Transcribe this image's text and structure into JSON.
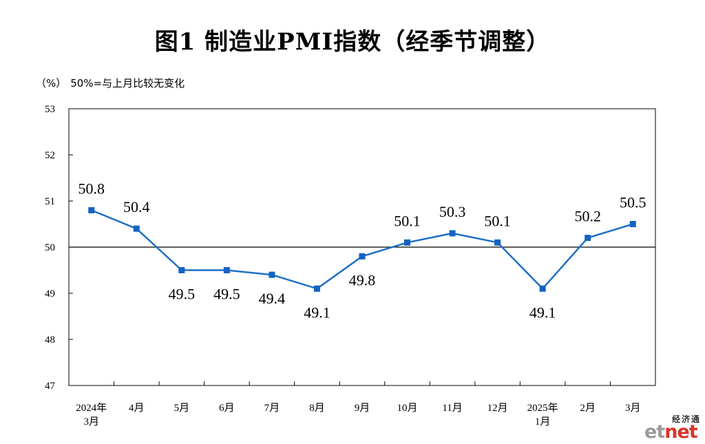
{
  "title": "图1  制造业PMI指数（经季节调整）",
  "unit": "（%）",
  "note": "50%=与上月比较无变化",
  "watermark": {
    "cn": "经济通",
    "en": "etnet",
    "colors": {
      "e": "#9a9a9a",
      "t": "#9a9a9a",
      "net": "#d9342b"
    }
  },
  "colors": {
    "line": "#1f6fc5",
    "marker": "#1463c2",
    "axis": "#000000",
    "reference": "#000000"
  },
  "chart_data": {
    "type": "line",
    "title": "图1  制造业PMI指数（经季节调整）",
    "ylabel": "（%）",
    "ylim": [
      47,
      53
    ],
    "yticks": [
      47,
      48,
      49,
      50,
      51,
      52,
      53
    ],
    "reference_line": 50,
    "categories": [
      [
        "2024年",
        "3月"
      ],
      [
        "4月"
      ],
      [
        "5月"
      ],
      [
        "6月"
      ],
      [
        "7月"
      ],
      [
        "8月"
      ],
      [
        "9月"
      ],
      [
        "10月"
      ],
      [
        "11月"
      ],
      [
        "12月"
      ],
      [
        "2025年",
        "1月"
      ],
      [
        "2月"
      ],
      [
        "3月"
      ]
    ],
    "series": [
      {
        "values": [
          50.8,
          50.4,
          49.5,
          49.5,
          49.4,
          49.1,
          49.8,
          50.1,
          50.3,
          50.1,
          49.1,
          50.2,
          50.5
        ],
        "labels": [
          "50.8",
          "50.4",
          "49.5",
          "49.5",
          "49.4",
          "49.1",
          "49.8",
          "50.1",
          "50.3",
          "50.1",
          "49.1",
          "50.2",
          "50.5"
        ],
        "label_position": [
          "above",
          "above",
          "below",
          "below",
          "below",
          "below",
          "below",
          "above",
          "above",
          "above",
          "below",
          "above",
          "above"
        ]
      }
    ],
    "grid": false,
    "legend": "none"
  }
}
